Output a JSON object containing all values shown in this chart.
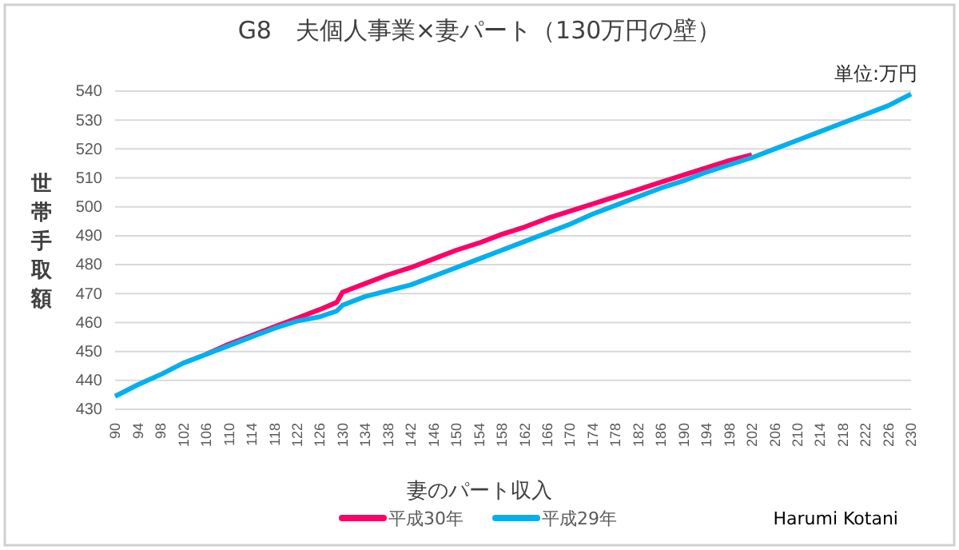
{
  "chart_data": {
    "type": "line",
    "title": "G8　夫個人事業×妻パート（130万円の壁）",
    "xlabel": "妻のパート収入",
    "ylabel": "世帯手取額",
    "annotations": [
      "単位:万円",
      "Harumi Kotani"
    ],
    "x": [
      90,
      94,
      98,
      102,
      106,
      110,
      114,
      118,
      122,
      126,
      129,
      130,
      134,
      138,
      142,
      146,
      150,
      154,
      158,
      162,
      166,
      170,
      174,
      178,
      182,
      186,
      190,
      194,
      198,
      202,
      206,
      210,
      214,
      218,
      222,
      226,
      230
    ],
    "series": [
      {
        "name": "平成30年",
        "color": "#ff0066",
        "values": [
          null,
          null,
          null,
          null,
          449,
          452.5,
          455.5,
          458.5,
          461.5,
          464.5,
          467,
          470.5,
          473.5,
          476.5,
          479,
          482,
          485,
          487.5,
          490.5,
          493,
          496,
          498.5,
          501,
          503.5,
          506,
          508.5,
          511,
          513.5,
          516,
          518,
          null,
          null,
          null,
          null,
          null,
          null,
          null
        ]
      },
      {
        "name": "平成29年",
        "color": "#00b0f0",
        "values": [
          434.5,
          438.5,
          442,
          446,
          449,
          452,
          455,
          458,
          460.5,
          462,
          464,
          466,
          469,
          471,
          473,
          476,
          479,
          482,
          485,
          488,
          491,
          494,
          497.5,
          500.5,
          503.5,
          506.5,
          509,
          512,
          514.5,
          517,
          520,
          523,
          526,
          529,
          532,
          535,
          539
        ]
      }
    ],
    "xlim": [
      90,
      230
    ],
    "xticks": [
      90,
      94,
      98,
      102,
      106,
      110,
      114,
      118,
      122,
      126,
      130,
      134,
      138,
      142,
      146,
      150,
      154,
      158,
      162,
      166,
      170,
      174,
      178,
      182,
      186,
      190,
      194,
      198,
      202,
      206,
      210,
      214,
      218,
      222,
      226,
      230
    ],
    "ylim": [
      430,
      540
    ],
    "yticks": [
      430,
      440,
      450,
      460,
      470,
      480,
      490,
      500,
      510,
      520,
      530,
      540
    ],
    "grid": "y",
    "legend": "bottom",
    "marker": "none",
    "line_style": "solid"
  }
}
